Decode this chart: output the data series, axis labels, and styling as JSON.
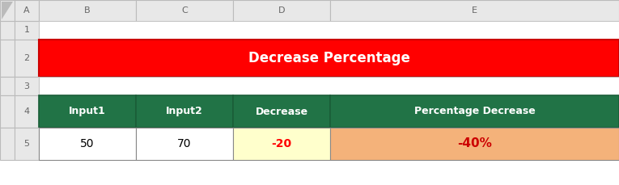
{
  "bg_color": "#ffffff",
  "col_header_bg": "#e8e8e8",
  "title_text": "Decrease Percentage",
  "title_bg": "#ff0000",
  "title_fg": "#ffffff",
  "header_bg": "#217346",
  "header_fg": "#ffffff",
  "headers": [
    "Input1",
    "Input2",
    "Decrease",
    "Percentage Decrease"
  ],
  "data_row": [
    "50",
    "70",
    "-20",
    "-40%"
  ],
  "cell_bg_d5": "#ffffcc",
  "cell_bg_e5": "#f4b27a",
  "cell_fg_d5": "#ff0000",
  "cell_fg_e5": "#cc0000",
  "cell_fg_normal": "#000000",
  "border_outer": "#333333",
  "border_inner": "#999999",
  "col_header_border": "#bbbbbb",
  "figw": 7.65,
  "figh": 2.29,
  "dpi": 100
}
